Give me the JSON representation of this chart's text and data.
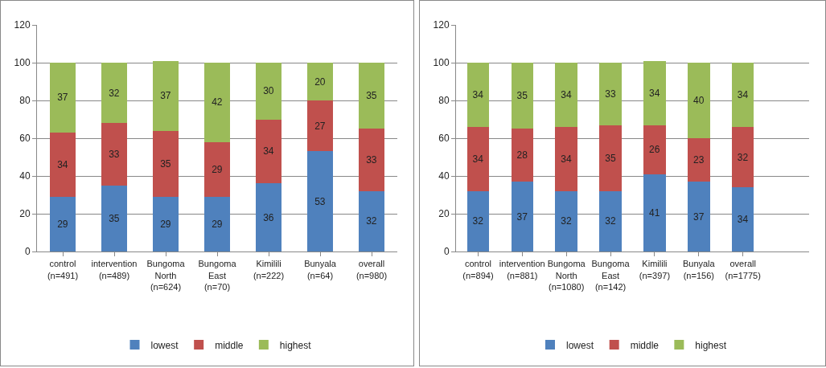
{
  "chart_data": [
    {
      "type": "bar",
      "stacked": true,
      "categories": [
        "control (n=491)",
        "intervention (n=489)",
        "Bungoma North (n=624)",
        "Bungoma East (n=70)",
        "Kimilili (n=222)",
        "Bunyala (n=64)",
        "overall (n=980)"
      ],
      "series": [
        {
          "name": "lowest",
          "color": "#4f81bd",
          "values": [
            29,
            35,
            29,
            29,
            36,
            53,
            32
          ]
        },
        {
          "name": "middle",
          "color": "#c0504d",
          "values": [
            34,
            33,
            35,
            29,
            34,
            27,
            33
          ]
        },
        {
          "name": "highest",
          "color": "#9bbb59",
          "values": [
            37,
            32,
            37,
            42,
            30,
            20,
            35
          ]
        }
      ],
      "ylim": [
        0,
        120
      ],
      "yticks": [
        0,
        20,
        40,
        60,
        80,
        100,
        120
      ],
      "grid": "y",
      "legend": "bottom",
      "data_labels": true
    },
    {
      "type": "bar",
      "stacked": true,
      "categories": [
        "control (n=894)",
        "intervention (n=881)",
        "Bungoma North (n=1080)",
        "Bungoma East (n=142)",
        "Kimilili (n=397)",
        "Bunyala (n=156)",
        "overall (n=1775)",
        null
      ],
      "series": [
        {
          "name": "lowest",
          "color": "#4f81bd",
          "values": [
            32,
            37,
            32,
            32,
            41,
            37,
            34,
            null
          ]
        },
        {
          "name": "middle",
          "color": "#c0504d",
          "values": [
            34,
            28,
            34,
            35,
            26,
            23,
            32,
            null
          ]
        },
        {
          "name": "highest",
          "color": "#9bbb59",
          "values": [
            34,
            35,
            34,
            33,
            34,
            40,
            34,
            null
          ]
        }
      ],
      "ylim": [
        0,
        120
      ],
      "yticks": [
        0,
        20,
        40,
        60,
        80,
        100,
        120
      ],
      "grid": "y",
      "legend": "bottom",
      "data_labels": true
    }
  ]
}
